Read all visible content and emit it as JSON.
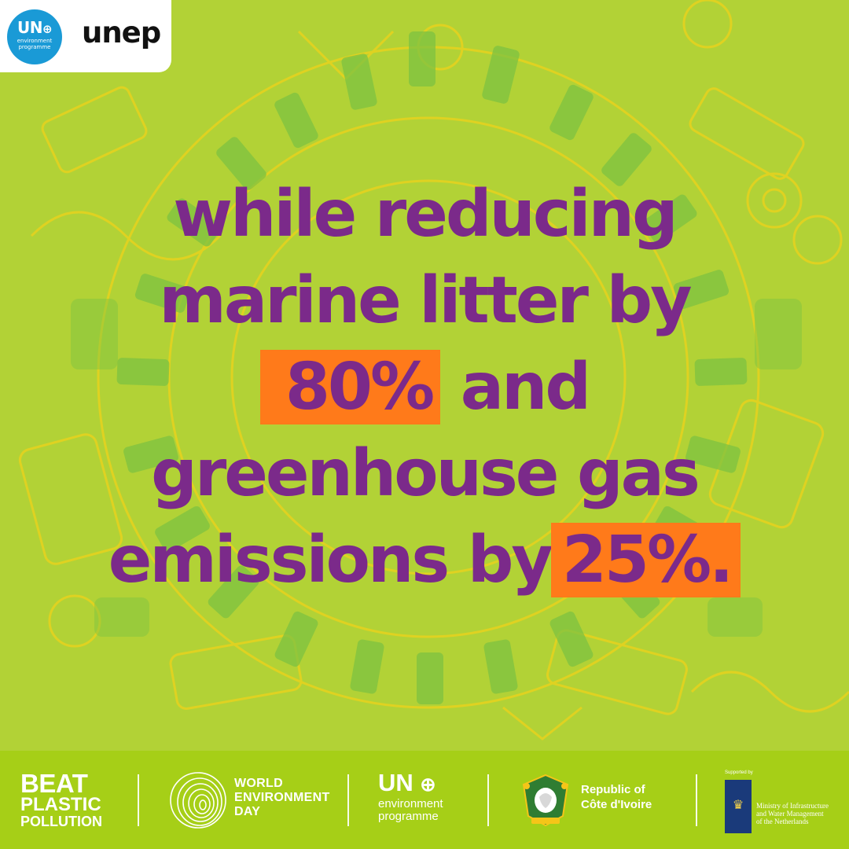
{
  "brand": {
    "un_letters": "UN",
    "un_subtitle_line1": "environment",
    "un_subtitle_line2": "programme",
    "wordmark": "unep",
    "colors": {
      "tab": "#ffffff",
      "circle": "#1a9ad6"
    }
  },
  "headline": {
    "line1": "while reducing",
    "line2": "marine litter by",
    "line3_highlight": "80%",
    "line3_rest": " and",
    "line4": "greenhouse gas",
    "line5_start": "emissions by",
    "line5_highlight": "25%.",
    "colors": {
      "text": "#7b2a8a",
      "highlight": "#ff7a1a",
      "background": "#b2d236"
    }
  },
  "footer": {
    "beat_line1": "BEAT",
    "beat_line2": "PLASTIC",
    "beat_line3": "POLLUTION",
    "wed_line1": "WORLD",
    "wed_line2": "ENVIRONMENT",
    "wed_line3": "DAY",
    "unep_un": "UN",
    "unep_line1": "environment",
    "unep_line2": "programme",
    "civ_line1": "Republic of",
    "civ_line2": "Côte d'Ivoire",
    "nl_supported": "Supported by",
    "nl_line1": "Ministry of Infrastructure",
    "nl_line2": "and Water Management",
    "nl_line3": "of the Netherlands",
    "colors": {
      "bar": "#a6cf17",
      "text": "#ffffff"
    }
  },
  "icons": [
    "un-globe-icon",
    "world-environment-day-fingerprint-icon",
    "cote-divoire-emblem-icon",
    "netherlands-crest-icon"
  ]
}
